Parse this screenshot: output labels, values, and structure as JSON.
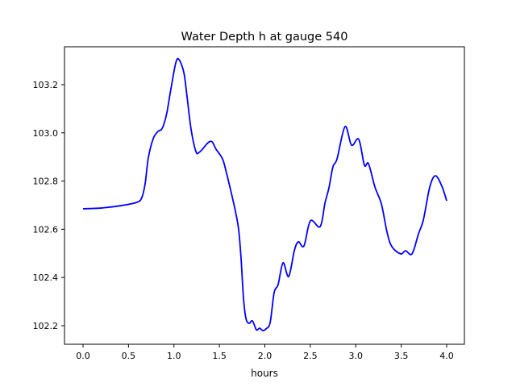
{
  "chart_data": {
    "type": "line",
    "title": "Water Depth h at gauge 540",
    "xlabel": "hours",
    "ylabel": "",
    "xlim": [
      -0.204,
      4.195
    ],
    "ylim": [
      102.123,
      103.357
    ],
    "xticks": [
      0.0,
      0.5,
      1.0,
      1.5,
      2.0,
      2.5,
      3.0,
      3.5,
      4.0
    ],
    "xtick_labels": [
      "0.0",
      "0.5",
      "1.0",
      "1.5",
      "2.0",
      "2.5",
      "3.0",
      "3.5",
      "4.0"
    ],
    "yticks": [
      102.2,
      102.4,
      102.6,
      102.8,
      103.0,
      103.2
    ],
    "ytick_labels": [
      "102.2",
      "102.4",
      "102.6",
      "102.8",
      "103.0",
      "103.2"
    ],
    "grid": false,
    "series": [
      {
        "name": "h",
        "color": "#0000ff",
        "x": [
          0,
          0.195,
          0.417,
          0.594,
          0.647,
          0.683,
          0.718,
          0.772,
          0.825,
          0.86,
          0.887,
          0.922,
          0.967,
          1.02,
          1.055,
          1.109,
          1.144,
          1.188,
          1.242,
          1.277,
          1.322,
          1.375,
          1.419,
          1.463,
          1.534,
          1.579,
          1.632,
          1.676,
          1.712,
          1.738,
          1.765,
          1.792,
          1.827,
          1.863,
          1.907,
          1.942,
          1.978,
          2.013,
          2.058,
          2.102,
          2.146,
          2.2,
          2.262,
          2.324,
          2.368,
          2.43,
          2.501,
          2.608,
          2.661,
          2.705,
          2.749,
          2.794,
          2.882,
          2.953,
          3.033,
          3.095,
          3.14,
          3.211,
          3.282,
          3.344,
          3.397,
          3.494,
          3.548,
          3.619,
          3.69,
          3.743,
          3.814,
          3.876,
          3.947,
          4.0
        ],
        "y": [
          102.685,
          102.688,
          102.698,
          102.712,
          102.732,
          102.789,
          102.896,
          102.976,
          103.006,
          103.013,
          103.033,
          103.083,
          103.183,
          103.29,
          103.304,
          103.25,
          103.15,
          103.016,
          102.922,
          102.919,
          102.936,
          102.959,
          102.963,
          102.932,
          102.892,
          102.832,
          102.749,
          102.675,
          102.598,
          102.481,
          102.314,
          102.23,
          102.21,
          102.22,
          102.183,
          102.19,
          102.18,
          102.187,
          102.213,
          102.337,
          102.371,
          102.461,
          102.404,
          102.511,
          102.548,
          102.531,
          102.635,
          102.611,
          102.708,
          102.772,
          102.859,
          102.892,
          103.026,
          102.949,
          102.973,
          102.866,
          102.872,
          102.775,
          102.705,
          102.588,
          102.528,
          102.498,
          102.511,
          102.498,
          102.581,
          102.638,
          102.775,
          102.822,
          102.779,
          102.718
        ]
      }
    ]
  }
}
